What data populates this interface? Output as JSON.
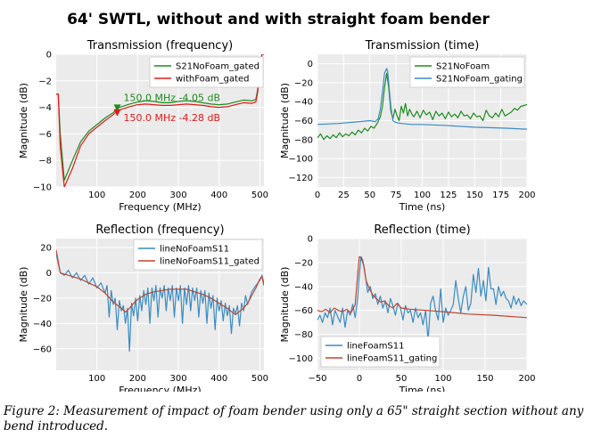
{
  "figure": {
    "title": "64' SWTL, without and with straight foam bender",
    "caption": "Figure 2: Measurement of impact of foam bender using only a 65\" straight section without any bend introduced."
  },
  "colors": {
    "green": "#1e8c1e",
    "red": "#e01b1b",
    "blue": "#3a8cc4",
    "brown": "#c0462d",
    "plot_bg": "#ebebeb",
    "grid": "#ffffff"
  },
  "chart_data": [
    {
      "id": "transmission-frequency",
      "type": "line",
      "title": "Transmission (frequency)",
      "xlabel": "Frequency (MHz)",
      "ylabel": "Magnitude (dB)",
      "xlim": [
        0,
        510
      ],
      "ylim": [
        -10,
        0
      ],
      "xticks": [
        100,
        200,
        300,
        400,
        500
      ],
      "yticks": [
        -10,
        -8,
        -6,
        -4,
        -2,
        0
      ],
      "legend_position": "top-right",
      "series": [
        {
          "name": "S21NoFoam_gated",
          "color": "#1e8c1e",
          "x": [
            0,
            5,
            10,
            20,
            40,
            60,
            80,
            100,
            120,
            140,
            150,
            160,
            180,
            200,
            220,
            240,
            260,
            280,
            300,
            320,
            340,
            360,
            380,
            400,
            420,
            440,
            460,
            480,
            490,
            495,
            500,
            505,
            510
          ],
          "y": [
            -3.0,
            -3.0,
            -6.0,
            -9.5,
            -8.0,
            -6.6,
            -5.8,
            -5.3,
            -4.8,
            -4.4,
            -4.05,
            -3.95,
            -3.75,
            -3.6,
            -3.5,
            -3.55,
            -3.65,
            -3.65,
            -3.55,
            -3.5,
            -3.55,
            -3.65,
            -3.75,
            -3.8,
            -3.75,
            -3.6,
            -3.45,
            -3.5,
            -3.4,
            -2.6,
            -1.0,
            0,
            0
          ]
        },
        {
          "name": "withFoam_gated",
          "color": "#e01b1b",
          "x": [
            0,
            5,
            10,
            20,
            40,
            60,
            80,
            100,
            120,
            140,
            150,
            160,
            180,
            200,
            220,
            240,
            260,
            280,
            300,
            320,
            340,
            360,
            380,
            400,
            420,
            440,
            460,
            480,
            490,
            495,
            500,
            505,
            510
          ],
          "y": [
            -3.0,
            -3.0,
            -7.0,
            -10.0,
            -8.6,
            -6.9,
            -6.0,
            -5.5,
            -5.0,
            -4.55,
            -4.28,
            -4.15,
            -3.95,
            -3.8,
            -3.75,
            -3.8,
            -3.85,
            -3.85,
            -3.8,
            -3.75,
            -3.8,
            -3.85,
            -3.95,
            -4.0,
            -3.95,
            -3.8,
            -3.65,
            -3.7,
            -3.6,
            -2.8,
            -1.2,
            0,
            0
          ]
        }
      ],
      "markers": [
        {
          "series": "S21NoFoam_gated",
          "x": 150.0,
          "y": -4.05,
          "label": "150.0  MHz  -4.05  dB",
          "color": "#1e8c1e"
        },
        {
          "series": "withFoam_gated",
          "x": 150.0,
          "y": -4.28,
          "label": "150.0  MHz  -4.28  dB",
          "color": "#e01b1b"
        }
      ]
    },
    {
      "id": "transmission-time",
      "type": "line",
      "title": "Transmission (time)",
      "xlabel": "Time (ns)",
      "ylabel": "Magnitude (dB)",
      "xlim": [
        0,
        200
      ],
      "ylim": [
        -130,
        10
      ],
      "xticks": [
        0,
        25,
        50,
        75,
        100,
        125,
        150,
        175,
        200
      ],
      "yticks": [
        -120,
        -100,
        -80,
        -60,
        -40,
        -20,
        0
      ],
      "legend_position": "top-right",
      "series": [
        {
          "name": "S21NoFoam",
          "color": "#1e8c1e",
          "x": [
            0,
            3,
            6,
            9,
            12,
            15,
            18,
            21,
            24,
            27,
            30,
            33,
            36,
            39,
            42,
            45,
            48,
            51,
            54,
            57,
            60,
            62,
            64,
            66,
            68,
            70,
            72,
            74,
            76,
            78,
            80,
            82,
            84,
            86,
            88,
            90,
            92,
            95,
            98,
            101,
            104,
            107,
            110,
            113,
            116,
            119,
            122,
            125,
            128,
            131,
            134,
            137,
            140,
            143,
            146,
            149,
            152,
            155,
            158,
            161,
            164,
            167,
            170,
            173,
            176,
            179,
            182,
            185,
            188,
            191,
            194,
            197,
            200
          ],
          "y": [
            -78,
            -74,
            -80,
            -76,
            -79,
            -75,
            -78,
            -73,
            -77,
            -74,
            -76,
            -72,
            -75,
            -70,
            -73,
            -68,
            -71,
            -66,
            -68,
            -63,
            -56,
            -45,
            -25,
            -10,
            -25,
            -50,
            -58,
            -48,
            -55,
            -60,
            -45,
            -52,
            -42,
            -55,
            -48,
            -53,
            -56,
            -50,
            -57,
            -49,
            -54,
            -51,
            -59,
            -50,
            -55,
            -52,
            -58,
            -51,
            -56,
            -53,
            -57,
            -50,
            -55,
            -54,
            -58,
            -52,
            -56,
            -55,
            -60,
            -49,
            -55,
            -57,
            -52,
            -56,
            -48,
            -55,
            -53,
            -51,
            -47,
            -49,
            -45,
            -44,
            -43
          ]
        },
        {
          "name": "S21NoFoam_gating",
          "color": "#3a8cc4",
          "x": [
            0,
            20,
            40,
            50,
            55,
            58,
            60,
            62,
            64,
            66,
            67,
            68,
            70,
            72,
            75,
            80,
            90,
            100,
            120,
            150,
            180,
            200
          ],
          "y": [
            -64,
            -63,
            -61,
            -60,
            -61,
            -58,
            -48,
            -30,
            -10,
            -5,
            -8,
            -20,
            -45,
            -60,
            -62,
            -63,
            -64,
            -64,
            -65,
            -67,
            -68,
            -69
          ]
        }
      ]
    },
    {
      "id": "reflection-frequency",
      "type": "line",
      "title": "Reflection (frequency)",
      "xlabel": "Frequency (MHz)",
      "ylabel": "Magnitude (dB)",
      "xlim": [
        0,
        510
      ],
      "ylim": [
        -77,
        27
      ],
      "xticks": [
        100,
        200,
        300,
        400,
        500
      ],
      "yticks": [
        -60,
        -40,
        -20,
        0,
        20
      ],
      "legend_position": "top-right",
      "series": [
        {
          "name": "lineNoFoamS11",
          "color": "#3a8cc4",
          "x": [
            0,
            10,
            20,
            30,
            40,
            50,
            60,
            70,
            80,
            90,
            100,
            110,
            120,
            125,
            130,
            135,
            140,
            145,
            150,
            155,
            160,
            165,
            170,
            175,
            180,
            185,
            190,
            195,
            200,
            205,
            210,
            215,
            220,
            225,
            230,
            235,
            240,
            245,
            250,
            255,
            260,
            265,
            270,
            275,
            280,
            285,
            290,
            295,
            300,
            305,
            310,
            315,
            320,
            325,
            330,
            335,
            340,
            345,
            350,
            355,
            360,
            365,
            370,
            375,
            380,
            385,
            390,
            395,
            400,
            405,
            410,
            415,
            420,
            425,
            430,
            435,
            440,
            445,
            450,
            455,
            460,
            465,
            470,
            480,
            490,
            500,
            505,
            510
          ],
          "y": [
            15,
            0,
            -2,
            2,
            -4,
            0,
            -6,
            -2,
            -9,
            -4,
            -12,
            -8,
            -16,
            -10,
            -35,
            -14,
            -25,
            -20,
            -45,
            -22,
            -30,
            -26,
            -40,
            -28,
            -62,
            -24,
            -34,
            -20,
            -38,
            -18,
            -30,
            -14,
            -25,
            -12,
            -40,
            -12,
            -22,
            -10,
            -35,
            -12,
            -20,
            -10,
            -30,
            -12,
            -22,
            -10,
            -35,
            -12,
            -22,
            -10,
            -40,
            -12,
            -25,
            -10,
            -30,
            -12,
            -22,
            -12,
            -35,
            -14,
            -24,
            -14,
            -40,
            -16,
            -28,
            -18,
            -45,
            -20,
            -30,
            -22,
            -38,
            -24,
            -34,
            -26,
            -48,
            -28,
            -32,
            -26,
            -42,
            -24,
            -30,
            -18,
            -25,
            -15,
            -10,
            -6,
            -2,
            -8
          ]
        },
        {
          "name": "lineNoFoamS11_gated",
          "color": "#c0462d",
          "x": [
            0,
            10,
            20,
            40,
            60,
            80,
            100,
            120,
            140,
            160,
            170,
            180,
            190,
            200,
            220,
            240,
            260,
            280,
            300,
            320,
            340,
            360,
            380,
            400,
            420,
            440,
            460,
            470,
            480,
            490,
            500,
            505,
            510
          ],
          "y": [
            18,
            0,
            -1,
            -3,
            -5,
            -8,
            -11,
            -16,
            -23,
            -28,
            -31,
            -28,
            -24,
            -21,
            -17,
            -15,
            -14,
            -13,
            -13,
            -13,
            -15,
            -17,
            -20,
            -24,
            -28,
            -33,
            -28,
            -24,
            -18,
            -12,
            -5,
            -3,
            -10
          ]
        }
      ]
    },
    {
      "id": "reflection-time",
      "type": "line",
      "title": "Reflection (time)",
      "xlabel": "Time (ns)",
      "ylabel": "Magnitude (dB)",
      "xlim": [
        -50,
        200
      ],
      "ylim": [
        -110,
        0
      ],
      "xticks": [
        -50,
        0,
        50,
        100,
        150,
        200
      ],
      "yticks": [
        -100,
        -80,
        -60,
        -40,
        -20,
        0
      ],
      "legend_position": "bottom-left",
      "series": [
        {
          "name": "lineFoamS11",
          "color": "#3a8cc4",
          "x": [
            -50,
            -47,
            -44,
            -41,
            -38,
            -35,
            -32,
            -29,
            -26,
            -23,
            -20,
            -17,
            -14,
            -11,
            -8,
            -5,
            -2,
            0,
            2,
            4,
            6,
            8,
            10,
            13,
            16,
            19,
            22,
            25,
            28,
            31,
            34,
            37,
            40,
            43,
            46,
            49,
            52,
            55,
            58,
            61,
            64,
            67,
            70,
            73,
            76,
            79,
            82,
            85,
            88,
            91,
            94,
            97,
            100,
            103,
            106,
            109,
            112,
            115,
            118,
            121,
            124,
            127,
            130,
            133,
            136,
            139,
            142,
            145,
            148,
            151,
            154,
            157,
            160,
            163,
            166,
            169,
            172,
            175,
            178,
            181,
            184,
            187,
            190,
            193,
            196,
            200
          ],
          "y": [
            -68,
            -64,
            -70,
            -62,
            -66,
            -58,
            -72,
            -60,
            -65,
            -70,
            -58,
            -74,
            -60,
            -64,
            -55,
            -66,
            -50,
            -30,
            -15,
            -18,
            -25,
            -35,
            -45,
            -40,
            -50,
            -46,
            -55,
            -48,
            -58,
            -52,
            -62,
            -50,
            -56,
            -64,
            -54,
            -58,
            -68,
            -56,
            -62,
            -60,
            -70,
            -58,
            -66,
            -62,
            -72,
            -60,
            -85,
            -54,
            -48,
            -60,
            -68,
            -42,
            -70,
            -58,
            -64,
            -60,
            -55,
            -35,
            -50,
            -62,
            -48,
            -40,
            -60,
            -54,
            -30,
            -45,
            -25,
            -48,
            -35,
            -52,
            -24,
            -42,
            -42,
            -55,
            -40,
            -48,
            -44,
            -50,
            -52,
            -58,
            -48,
            -55,
            -50,
            -56,
            -52,
            -55
          ]
        },
        {
          "name": "lineFoamS11_gating",
          "color": "#c0462d",
          "x": [
            -50,
            -45,
            -40,
            -35,
            -30,
            -25,
            -20,
            -15,
            -10,
            -5,
            -2,
            0,
            2,
            5,
            8,
            12,
            16,
            20,
            25,
            30,
            35,
            40,
            45,
            50,
            60,
            80,
            100,
            130,
            160,
            200
          ],
          "y": [
            -60,
            -61,
            -59,
            -62,
            -58,
            -60,
            -61,
            -59,
            -62,
            -55,
            -30,
            -15,
            -16,
            -22,
            -35,
            -42,
            -47,
            -50,
            -53,
            -52,
            -56,
            -58,
            -54,
            -58,
            -59,
            -60,
            -61,
            -63,
            -64,
            -66
          ]
        }
      ]
    }
  ]
}
